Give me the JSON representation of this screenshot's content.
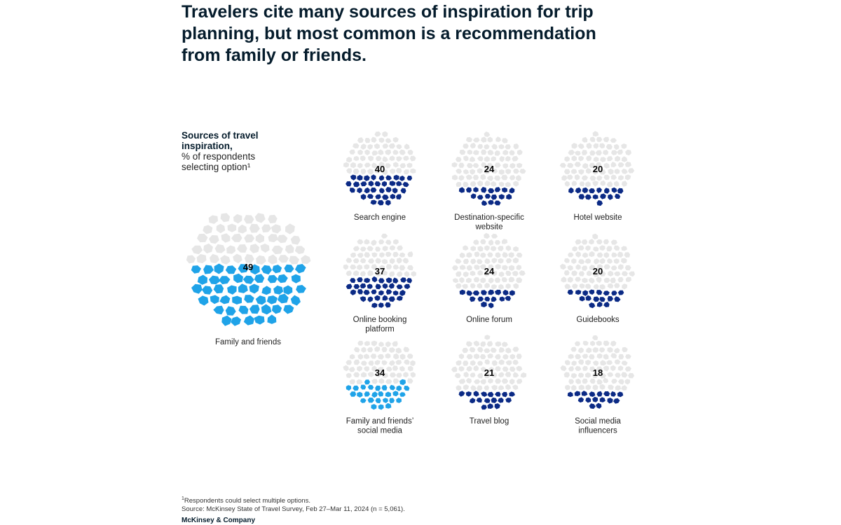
{
  "title": "Travelers cite many sources of inspiration for trip planning, but most common is a recommendation from family or friends.",
  "subtitle": {
    "bold": "Sources of travel inspiration,",
    "plain": "% of respondents selecting option¹"
  },
  "colors": {
    "empty": "#e6e6e6",
    "highlight": "#1fa3e8",
    "dark": "#0b2a85"
  },
  "chart_data": {
    "type": "proportional-area circles",
    "unit": "% of respondents",
    "items": [
      {
        "label": "Family and friends",
        "value": 49,
        "color": "highlight"
      },
      {
        "label": "Search engine",
        "value": 40,
        "color": "dark"
      },
      {
        "label": "Destination-specific website",
        "value": 24,
        "color": "dark"
      },
      {
        "label": "Hotel website",
        "value": 20,
        "color": "dark"
      },
      {
        "label": "Online booking platform",
        "value": 37,
        "color": "dark"
      },
      {
        "label": "Online forum",
        "value": 24,
        "color": "dark"
      },
      {
        "label": "Guidebooks",
        "value": 20,
        "color": "dark"
      },
      {
        "label": "Family and friends’ social media",
        "value": 34,
        "color": "highlight"
      },
      {
        "label": "Travel blog",
        "value": 21,
        "color": "dark"
      },
      {
        "label": "Social media influencers",
        "value": 18,
        "color": "dark"
      }
    ]
  },
  "footnote": {
    "marker": "1",
    "note": "Respondents could select multiple options.",
    "source": "Source: McKinsey State of Travel Survey, Feb 27–Mar 11, 2024 (n = 5,061)."
  },
  "brand": "McKinsey & Company"
}
